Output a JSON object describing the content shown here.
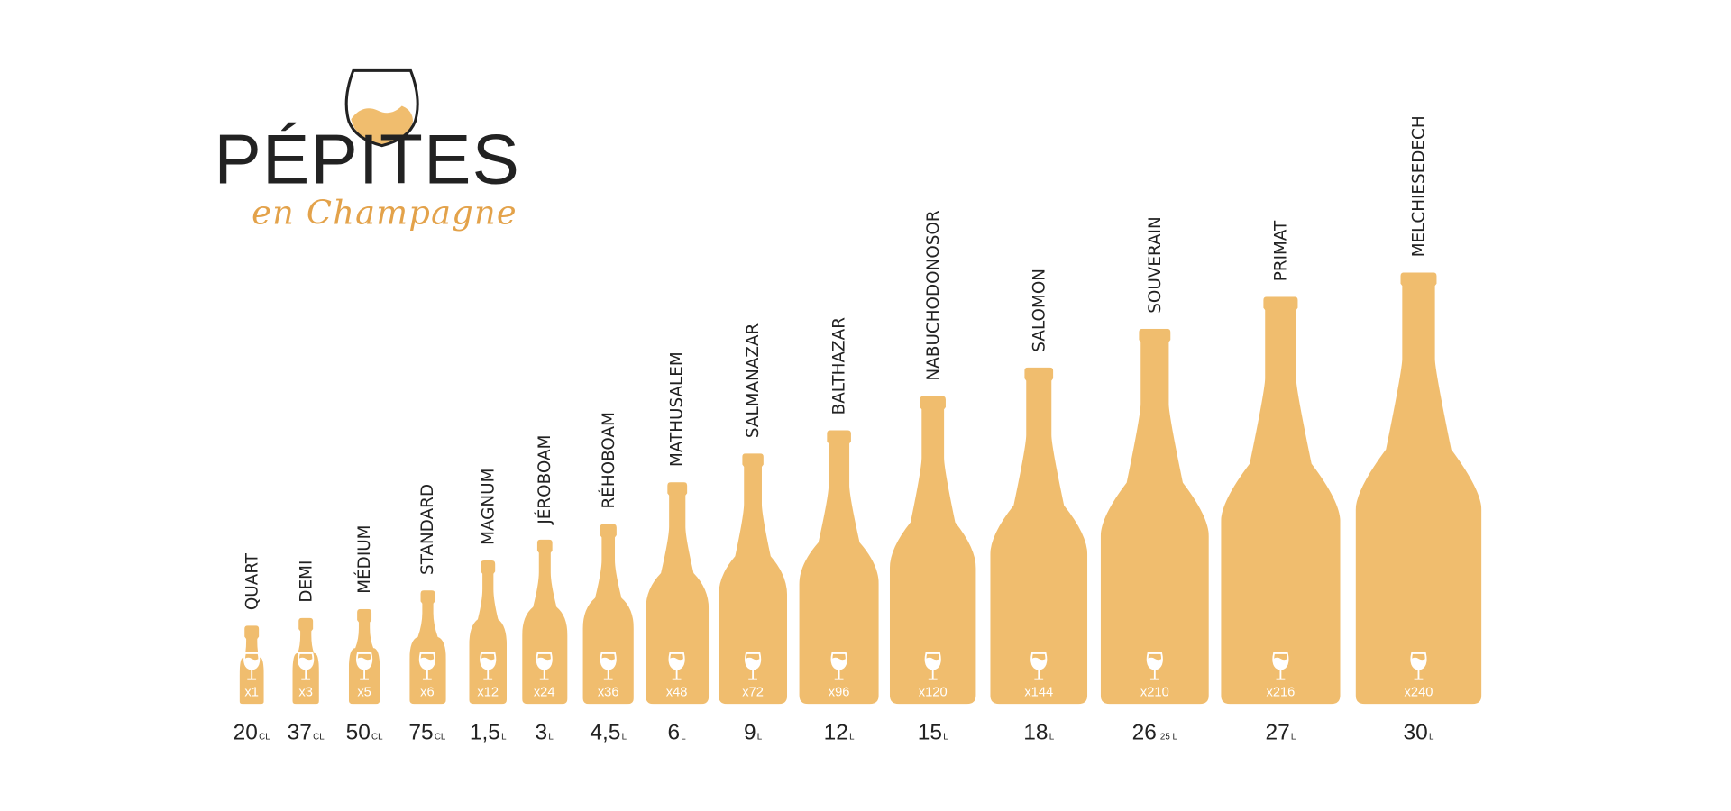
{
  "logo": {
    "word": "PÉPITES",
    "script": "en Champagne"
  },
  "colors": {
    "bottle": "#F0BD6E",
    "text": "#222222",
    "accent": "#E3A24A"
  },
  "icons": {
    "glass": "wine-glass-icon"
  },
  "bottles": [
    {
      "name": "QUART",
      "count": "x1",
      "volume": "20",
      "unit": "CL"
    },
    {
      "name": "DEMI",
      "count": "x3",
      "volume": "37",
      "unit": "CL"
    },
    {
      "name": "MÉDIUM",
      "count": "x5",
      "volume": "50",
      "unit": "CL"
    },
    {
      "name": "STANDARD",
      "count": "x6",
      "volume": "75",
      "unit": "CL"
    },
    {
      "name": "MAGNUM",
      "count": "x12",
      "volume": "1,5",
      "unit": "L"
    },
    {
      "name": "JÉROBOAM",
      "count": "x24",
      "volume": "3",
      "unit": "L"
    },
    {
      "name": "RÉHOBOAM",
      "count": "x36",
      "volume": "4,5",
      "unit": "L"
    },
    {
      "name": "MATHUSALEM",
      "count": "x48",
      "volume": "6",
      "unit": "L"
    },
    {
      "name": "SALMANAZAR",
      "count": "x72",
      "volume": "9",
      "unit": "L"
    },
    {
      "name": "BALTHAZAR",
      "count": "x96",
      "volume": "12",
      "unit": "L"
    },
    {
      "name": "NABUCHODONOSOR",
      "count": "x120",
      "volume": "15",
      "unit": "L"
    },
    {
      "name": "SALOMON",
      "count": "x144",
      "volume": "18",
      "unit": "L"
    },
    {
      "name": "SOUVERAIN",
      "count": "x210",
      "volume": "26",
      "unit": ",25 L"
    },
    {
      "name": "PRIMAT",
      "count": "x216",
      "volume": "27",
      "unit": "L"
    },
    {
      "name": "MELCHIESEDECH",
      "count": "x240",
      "volume": "30",
      "unit": "L"
    }
  ]
}
